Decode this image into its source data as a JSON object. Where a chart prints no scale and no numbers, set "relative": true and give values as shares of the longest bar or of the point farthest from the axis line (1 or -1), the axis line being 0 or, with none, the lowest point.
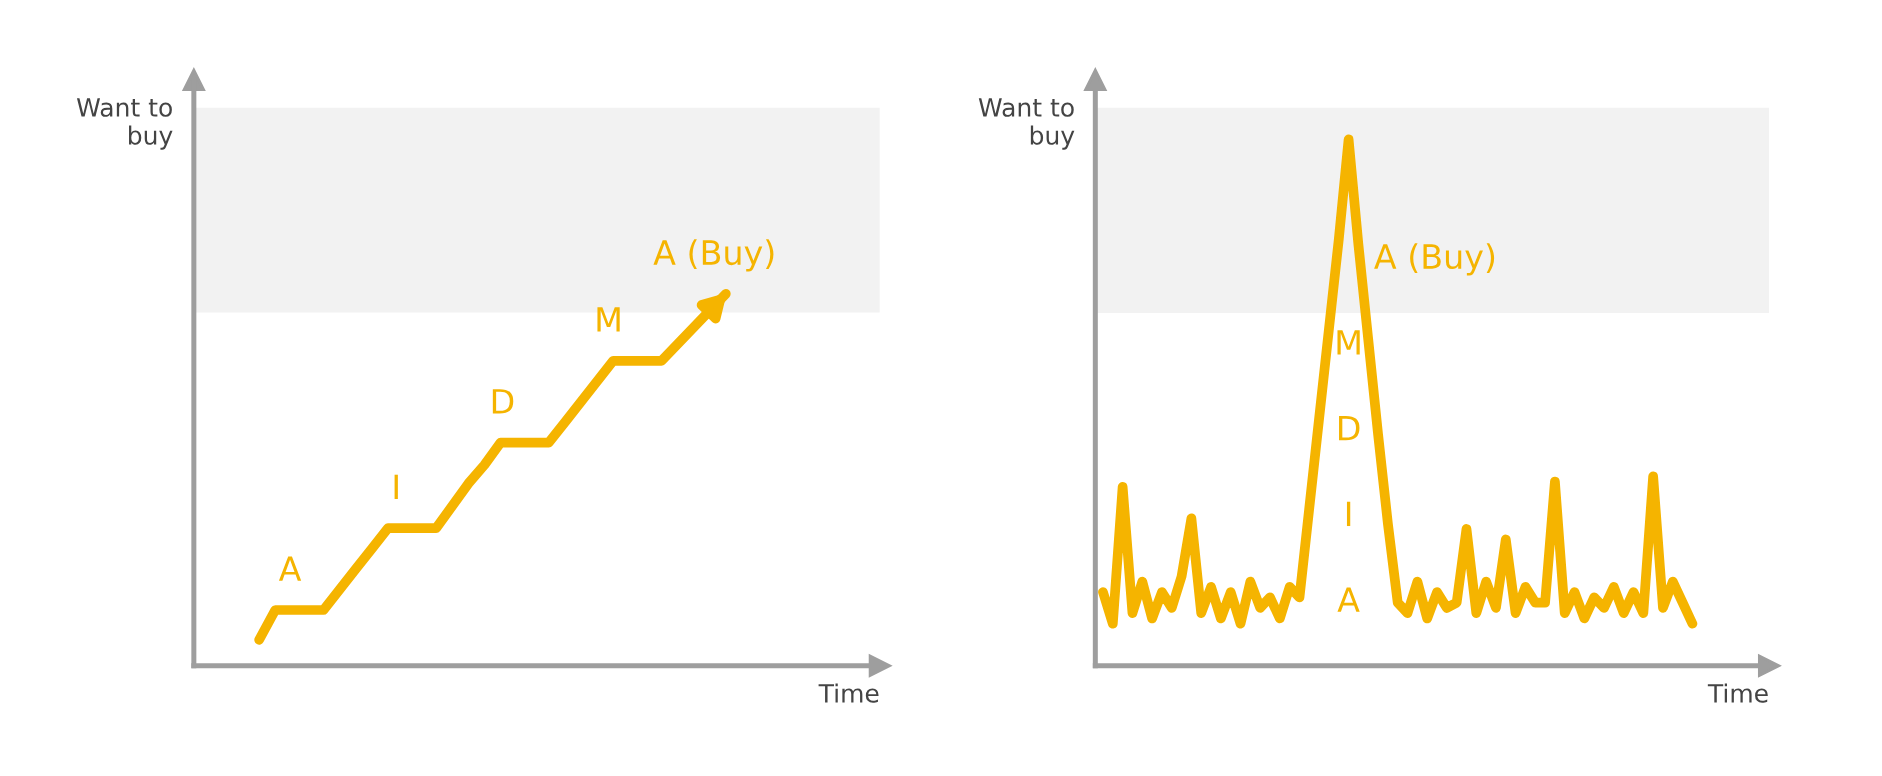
{
  "chart_data": [
    {
      "type": "line",
      "relative": true,
      "xlabel": "Time",
      "ylabel": "Want to\nbuy",
      "marker": "none",
      "line_style": "solid",
      "categories": [
        null,
        null,
        null,
        null,
        null,
        null,
        null,
        null,
        null,
        null,
        null,
        null,
        null,
        null,
        null,
        null,
        null,
        null,
        null,
        null,
        null,
        null,
        null,
        null,
        null,
        null,
        null,
        null,
        null,
        null
      ],
      "series": [
        {
          "color": "#f5b400",
          "values": [
            0.07,
            0.15,
            0.15,
            0.15,
            0.15,
            0.205,
            0.26,
            0.315,
            0.37,
            0.37,
            0.37,
            0.37,
            0.43,
            0.49,
            0.54,
            0.6,
            0.6,
            0.6,
            0.6,
            0.655,
            0.71,
            0.765,
            0.82,
            0.82,
            0.82,
            0.82,
            0.865,
            0.91,
            0.955,
            1.0
          ]
        }
      ],
      "bands": [
        {
          "axis": "y",
          "from": 0.95,
          "to": 1.5,
          "color": "#f2f2f2"
        }
      ],
      "annotations": [
        "A",
        "I",
        "D",
        "M",
        "A (Buy)"
      ]
    },
    {
      "type": "line",
      "relative": true,
      "xlabel": "Time",
      "ylabel": "Want to\nbuy",
      "marker": "none",
      "line_style": "solid",
      "categories": [
        null,
        null,
        null,
        null,
        null,
        null,
        null,
        null,
        null,
        null,
        null,
        null,
        null,
        null,
        null,
        null,
        null,
        null,
        null,
        null,
        null,
        null,
        null,
        null,
        null,
        null,
        null,
        null,
        null,
        null,
        null,
        null,
        null,
        null,
        null,
        null,
        null,
        null,
        null,
        null,
        null,
        null,
        null,
        null,
        null,
        null,
        null,
        null,
        null,
        null,
        null,
        null,
        null,
        null,
        null,
        null,
        null,
        null,
        null,
        null,
        null
      ],
      "series": [
        {
          "color": "#f5b400",
          "values": [
            0.14,
            0.08,
            0.34,
            0.1,
            0.16,
            0.09,
            0.14,
            0.11,
            0.17,
            0.28,
            0.1,
            0.15,
            0.09,
            0.14,
            0.08,
            0.16,
            0.11,
            0.13,
            0.09,
            0.15,
            0.13,
            0.3,
            0.47,
            0.64,
            0.81,
            1.0,
            0.8,
            0.62,
            0.44,
            0.27,
            0.12,
            0.1,
            0.16,
            0.09,
            0.14,
            0.11,
            0.12,
            0.26,
            0.1,
            0.16,
            0.11,
            0.24,
            0.1,
            0.15,
            0.12,
            0.12,
            0.35,
            0.1,
            0.14,
            0.09,
            0.13,
            0.11,
            0.15,
            0.1,
            0.14,
            0.1,
            0.36,
            0.11,
            0.16,
            0.12,
            0.08
          ]
        }
      ],
      "bands": [
        {
          "axis": "y",
          "from": 0.67,
          "to": 1.06,
          "color": "#f2f2f2"
        }
      ],
      "annotations": [
        "A (Buy)",
        "M",
        "D",
        "I",
        "A"
      ]
    }
  ]
}
